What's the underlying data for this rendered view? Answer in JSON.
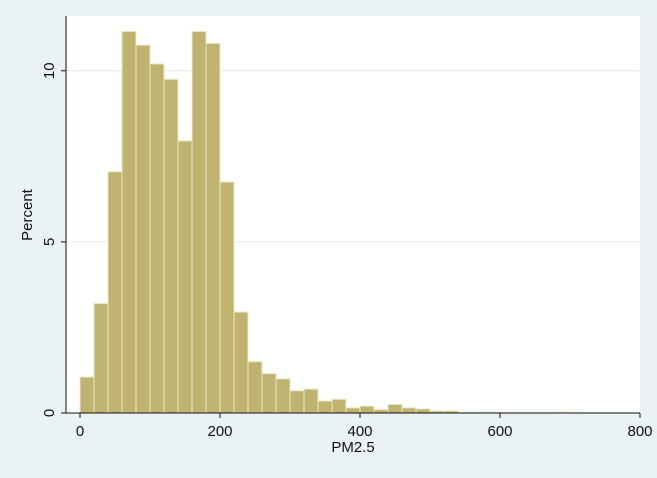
{
  "chart_data": {
    "type": "bar",
    "subtype": "histogram",
    "xlabel": "PM2.5",
    "ylabel": "Percent",
    "xlim": [
      -20,
      800
    ],
    "ylim": [
      0,
      11.6
    ],
    "bin_width": 20,
    "x_ticks": [
      0,
      200,
      400,
      600,
      800
    ],
    "y_ticks": [
      0,
      5,
      10
    ],
    "grid": "horizontal",
    "colors": {
      "bar_fill": "#bfb36f",
      "bar_edge": "#e8e8c8",
      "plot_bg": "#ffffff",
      "outer_bg": "#eaf2f3",
      "grid": "#e6ecee",
      "axis": "#111111"
    },
    "bins": [
      {
        "x0": 0,
        "x1": 20,
        "value": 1.05
      },
      {
        "x0": 20,
        "x1": 40,
        "value": 3.2
      },
      {
        "x0": 40,
        "x1": 60,
        "value": 7.05
      },
      {
        "x0": 60,
        "x1": 80,
        "value": 11.15
      },
      {
        "x0": 80,
        "x1": 100,
        "value": 10.75
      },
      {
        "x0": 100,
        "x1": 120,
        "value": 10.2
      },
      {
        "x0": 120,
        "x1": 140,
        "value": 9.75
      },
      {
        "x0": 140,
        "x1": 160,
        "value": 7.95
      },
      {
        "x0": 160,
        "x1": 180,
        "value": 11.15
      },
      {
        "x0": 180,
        "x1": 200,
        "value": 10.8
      },
      {
        "x0": 200,
        "x1": 220,
        "value": 6.75
      },
      {
        "x0": 220,
        "x1": 240,
        "value": 2.95
      },
      {
        "x0": 240,
        "x1": 260,
        "value": 1.5
      },
      {
        "x0": 260,
        "x1": 280,
        "value": 1.15
      },
      {
        "x0": 280,
        "x1": 300,
        "value": 1.0
      },
      {
        "x0": 300,
        "x1": 320,
        "value": 0.65
      },
      {
        "x0": 320,
        "x1": 340,
        "value": 0.7
      },
      {
        "x0": 340,
        "x1": 360,
        "value": 0.35
      },
      {
        "x0": 360,
        "x1": 380,
        "value": 0.4
      },
      {
        "x0": 380,
        "x1": 400,
        "value": 0.15
      },
      {
        "x0": 400,
        "x1": 420,
        "value": 0.2
      },
      {
        "x0": 420,
        "x1": 440,
        "value": 0.1
      },
      {
        "x0": 440,
        "x1": 460,
        "value": 0.25
      },
      {
        "x0": 460,
        "x1": 480,
        "value": 0.15
      },
      {
        "x0": 480,
        "x1": 500,
        "value": 0.12
      },
      {
        "x0": 500,
        "x1": 520,
        "value": 0.06
      },
      {
        "x0": 520,
        "x1": 540,
        "value": 0.06
      },
      {
        "x0": 540,
        "x1": 560,
        "value": 0.02
      },
      {
        "x0": 560,
        "x1": 580,
        "value": 0.02
      },
      {
        "x0": 580,
        "x1": 600,
        "value": 0.02
      },
      {
        "x0": 600,
        "x1": 620,
        "value": 0.01
      },
      {
        "x0": 620,
        "x1": 640,
        "value": 0.01
      },
      {
        "x0": 640,
        "x1": 660,
        "value": 0.01
      },
      {
        "x0": 660,
        "x1": 680,
        "value": 0.01
      },
      {
        "x0": 680,
        "x1": 700,
        "value": 0.02
      },
      {
        "x0": 700,
        "x1": 720,
        "value": 0.01
      }
    ]
  }
}
